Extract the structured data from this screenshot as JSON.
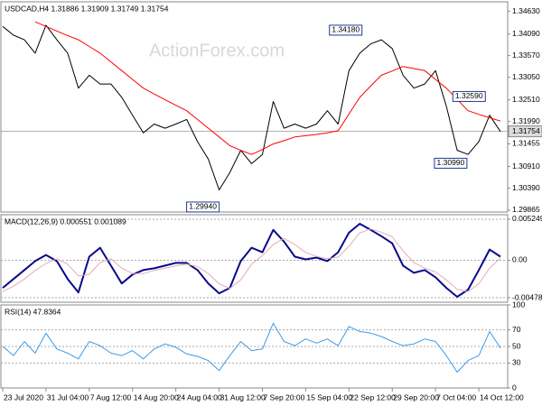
{
  "watermark": "ActionForex.com",
  "chart_data": [
    {
      "type": "line",
      "title": "USDCAD,H4  1.31886 1.31909 1.31749 1.31754",
      "xlim": [
        0,
        46.5
      ],
      "ylim": [
        1.2982,
        1.3486
      ],
      "yticks": [
        {
          "value": 1.3463,
          "label": "1.34630"
        },
        {
          "value": 1.3409,
          "label": "1.34090"
        },
        {
          "value": 1.3357,
          "label": "1.33570"
        },
        {
          "value": 1.3305,
          "label": "1.33050"
        },
        {
          "value": 1.3251,
          "label": "1.32510"
        },
        {
          "value": 1.3199,
          "label": "1.31990"
        },
        {
          "value": 1.31455,
          "label": "1.31455"
        },
        {
          "value": 1.3091,
          "label": "1.30910"
        },
        {
          "value": 1.3039,
          "label": "1.30390"
        },
        {
          "value": 1.29865,
          "label": "1.29865"
        }
      ],
      "grid": false,
      "series": [
        {
          "color": "#000000",
          "values": [
            1.3427,
            1.3406,
            1.3395,
            1.3363,
            1.343,
            1.3395,
            1.3363,
            1.3279,
            1.331,
            1.3289,
            1.3289,
            1.3257,
            1.3214,
            1.3172,
            1.3193,
            1.3183,
            1.3193,
            1.3204,
            1.3151,
            1.3109,
            1.3035,
            1.3077,
            1.313,
            1.3098,
            1.312,
            1.3247,
            1.3183,
            1.3193,
            1.3183,
            1.3193,
            1.3225,
            1.3193,
            1.3321,
            1.3363,
            1.3385,
            1.3395,
            1.3374,
            1.331,
            1.3279,
            1.3289,
            1.3321,
            1.3236,
            1.313,
            1.312,
            1.3151,
            1.3214,
            1.3175
          ]
        },
        {
          "color": "#ff0000",
          "values": [
            null,
            null,
            null,
            1.3438,
            1.3427,
            1.3416,
            1.3405,
            1.3395,
            1.3379,
            1.3363,
            1.3342,
            1.3321,
            1.33,
            1.3279,
            1.3265,
            1.3251,
            1.3238,
            1.3225,
            1.3204,
            1.3183,
            1.3162,
            1.3141,
            1.313,
            1.312,
            1.3132,
            1.3145,
            1.3153,
            1.3162,
            1.3165,
            1.3168,
            1.3172,
            1.3177,
            1.3217,
            1.3257,
            1.3284,
            1.331,
            1.332,
            1.3331,
            1.3326,
            1.3321,
            1.33,
            1.3279,
            1.3252,
            1.3225,
            1.3216,
            1.3208,
            1.32
          ]
        }
      ],
      "annotations": [
        {
          "x": 31.7,
          "value": 1.3418,
          "label": "1.34180"
        },
        {
          "x": 43.1,
          "value": 1.3259,
          "label": "1.32590"
        },
        {
          "x": 41.4,
          "value": 1.3099,
          "label": "1.30990"
        },
        {
          "x": 18.5,
          "value": 1.2994,
          "label": "1.29940"
        }
      ],
      "last": {
        "value": 1.31754,
        "label": "1.31754"
      }
    },
    {
      "type": "line",
      "title": "MACD(12,26,9) 0.000551 0.001089",
      "xlim": [
        0,
        46.5
      ],
      "ylim": [
        -0.00536,
        0.00582
      ],
      "yticks": [
        0.005249,
        {
          "value": 0,
          "label": "0.00"
        },
        -0.004785
      ],
      "grid": true,
      "series": [
        {
          "color": "#0a0a8c",
          "width": 2,
          "values": [
            -0.00353,
            -0.00239,
            -0.00125,
            -0.00011,
            0.00068,
            -0.00011,
            -0.00239,
            -0.0041,
            0.00046,
            0.0016,
            -0.00068,
            -0.00296,
            -0.00182,
            -0.00125,
            -0.00103,
            -0.00068,
            -0.00034,
            -0.00034,
            -0.00125,
            -0.00296,
            -0.00422,
            -0.00353,
            -0.00011,
            0.0016,
            0.00103,
            0.00388,
            0.00239,
            0.00046,
            0.00011,
            0.00034,
            -0.00011,
            0.00103,
            0.00353,
            0.00467,
            0.00388,
            0.00308,
            0.00217,
            -0.00068,
            -0.0016,
            -0.00125,
            -0.00217,
            -0.00353,
            -0.00467,
            -0.00376,
            -0.00125,
            0.00137,
            0.00046
          ]
        },
        {
          "color": "#e3aeb4",
          "width": 1,
          "values": [
            -0.004,
            -0.0033,
            -0.0024,
            -0.0013,
            -0.0004,
            0.0002,
            -0.0005,
            -0.002,
            -0.0018,
            -0.0003,
            0.0002,
            -0.001,
            -0.0017,
            -0.0017,
            -0.0013,
            -0.001,
            -0.0007,
            -0.0005,
            -0.0008,
            -0.0017,
            -0.003,
            -0.0036,
            -0.0025,
            -0.0005,
            0.0006,
            0.002,
            0.0028,
            0.002,
            0.001,
            0.0005,
            0.0002,
            0.0004,
            0.0018,
            0.0035,
            0.004,
            0.0036,
            0.003,
            0.0012,
            -0.0003,
            -0.001,
            -0.0015,
            -0.0025,
            -0.0037,
            -0.004,
            -0.003,
            -0.001,
            0.0003
          ]
        }
      ]
    },
    {
      "type": "line",
      "title": "RSI(14) 47.8364",
      "xlim": [
        0,
        46.5
      ],
      "ylim": [
        0,
        100
      ],
      "yticks": [
        100,
        70,
        50,
        30,
        0
      ],
      "grid": true,
      "series": [
        {
          "color": "#3c9be8",
          "width": 1,
          "values": [
            50,
            39,
            56,
            42,
            66,
            47,
            42,
            35,
            56,
            51,
            42,
            39,
            45,
            35,
            47,
            53,
            49,
            41,
            38,
            33,
            21,
            39,
            56,
            45,
            47,
            78,
            56,
            51,
            59,
            54,
            59,
            51,
            74,
            68,
            66,
            62,
            56,
            51,
            53,
            59,
            56,
            39,
            19,
            33,
            39,
            68,
            48
          ]
        }
      ],
      "xticks": [
        {
          "value": 0,
          "label": "23 Jul 2020"
        },
        {
          "value": 4,
          "label": "31 Jul 04:00"
        },
        {
          "value": 8,
          "label": "7 Aug 12:00"
        },
        {
          "value": 12,
          "label": "14 Aug 20:00"
        },
        {
          "value": 16,
          "label": "24 Aug 04:00"
        },
        {
          "value": 20,
          "label": "31 Aug 12:00"
        },
        {
          "value": 24,
          "label": "7 Sep 20:00"
        },
        {
          "value": 28,
          "label": "15 Sep 04:00"
        },
        {
          "value": 32,
          "label": "22 Sep 12:00"
        },
        {
          "value": 36,
          "label": "29 Sep 20:00"
        },
        {
          "value": 40,
          "label": "7 Oct 04:00"
        },
        {
          "value": 44,
          "label": "14 Oct 12:00"
        }
      ]
    }
  ]
}
